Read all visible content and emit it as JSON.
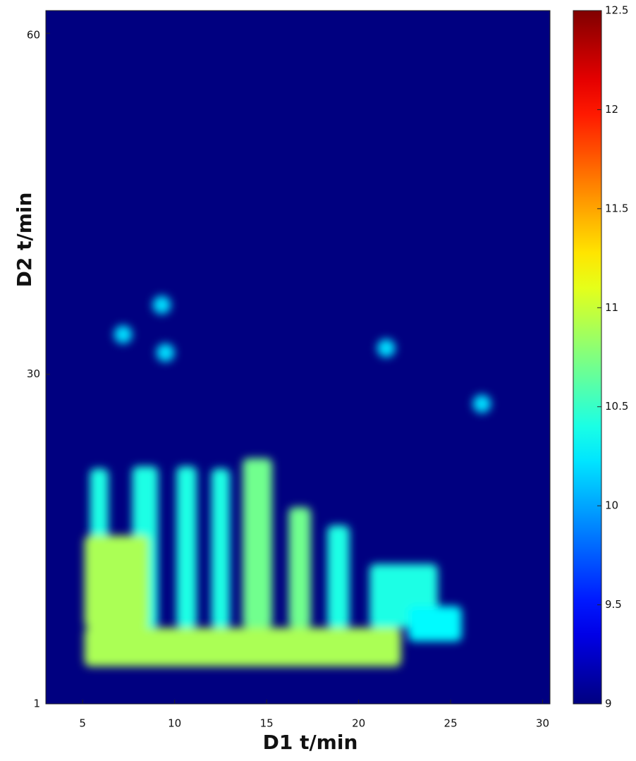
{
  "chart_data": {
    "type": "heatmap",
    "x_label": "D1 t/min",
    "y_label": "D2 t/min",
    "xlim": [
      3,
      30.4
    ],
    "ylim": [
      1,
      62
    ],
    "xticks": [
      5,
      10,
      15,
      20,
      25,
      30
    ],
    "yticks": [
      1,
      30,
      60
    ],
    "background_value": 9,
    "colormap": "jet",
    "clim": [
      9,
      12.5
    ],
    "colorbar_ticks": [
      9,
      9.5,
      10,
      10.5,
      11,
      11.5,
      12,
      12.5
    ],
    "spots": [
      {
        "x": 7.2,
        "y": 33.5,
        "value": 10.2
      },
      {
        "x": 9.3,
        "y": 36.1,
        "value": 10.2
      },
      {
        "x": 9.5,
        "y": 31.9,
        "value": 10.2
      },
      {
        "x": 21.5,
        "y": 32.3,
        "value": 10.2
      },
      {
        "x": 26.7,
        "y": 27.4,
        "value": 10.2
      }
    ],
    "regions": [
      {
        "x0": 5.4,
        "x1": 6.4,
        "y0": 7.7,
        "y1": 21.7,
        "value": 10.4
      },
      {
        "x0": 7.7,
        "x1": 9.1,
        "y0": 7.7,
        "y1": 21.9,
        "value": 10.4
      },
      {
        "x0": 10.1,
        "x1": 11.2,
        "y0": 7.7,
        "y1": 21.9,
        "value": 10.4
      },
      {
        "x0": 12.0,
        "x1": 13.0,
        "y0": 7.7,
        "y1": 21.7,
        "value": 10.4
      },
      {
        "x0": 13.7,
        "x1": 15.3,
        "y0": 7.7,
        "y1": 22.6,
        "value": 10.7
      },
      {
        "x0": 16.2,
        "x1": 17.4,
        "y0": 7.7,
        "y1": 18.3,
        "value": 10.7
      },
      {
        "x0": 18.3,
        "x1": 19.5,
        "y0": 7.7,
        "y1": 16.7,
        "value": 10.4
      },
      {
        "x0": 20.6,
        "x1": 24.3,
        "y0": 7.7,
        "y1": 13.3,
        "value": 10.4
      },
      {
        "x0": 22.7,
        "x1": 25.6,
        "y0": 6.5,
        "y1": 9.6,
        "value": 10.3
      },
      {
        "x0": 5.1,
        "x1": 8.6,
        "y0": 7.7,
        "y1": 15.8,
        "value": 10.9
      },
      {
        "x0": 5.1,
        "x1": 22.3,
        "y0": 4.3,
        "y1": 7.7,
        "value": 10.9
      }
    ]
  }
}
